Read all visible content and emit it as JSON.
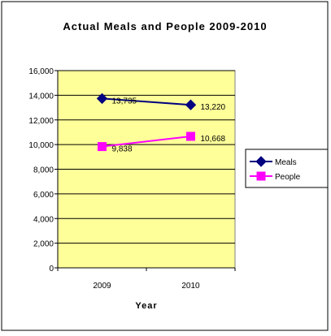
{
  "chart_data": {
    "type": "line",
    "title": "Actual Meals and People 2009-2010",
    "xlabel": "Year",
    "ylabel": "",
    "categories": [
      "2009",
      "2010"
    ],
    "ylim": [
      0,
      16000
    ],
    "yticks": [
      0,
      2000,
      4000,
      6000,
      8000,
      10000,
      12000,
      14000,
      16000
    ],
    "ytick_labels": [
      "0",
      "2,000",
      "4,000",
      "6,000",
      "8,000",
      "10,000",
      "12,000",
      "14,000",
      "16,000"
    ],
    "grid": true,
    "legend_position": "right",
    "plot_background": "#ffff99",
    "series": [
      {
        "name": "Meals",
        "values": [
          13735,
          13220
        ],
        "labels": [
          "13,735",
          "13,220"
        ],
        "color": "#000080",
        "marker": "diamond"
      },
      {
        "name": "People",
        "values": [
          9838,
          10668
        ],
        "labels": [
          "9,838",
          "10,668"
        ],
        "color": "#ff00ff",
        "marker": "square"
      }
    ]
  }
}
